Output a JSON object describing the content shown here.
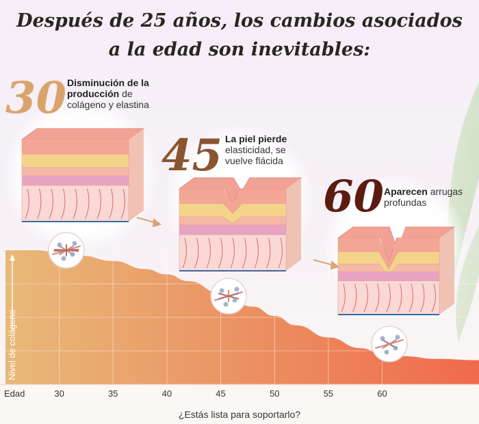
{
  "title_line1": "Después de 25 años, los cambios asociados",
  "title_line2": "a la edad son inevitables:",
  "stages": [
    {
      "age": "30",
      "bold": "Disminución de la producción",
      "rest": " de colágeno y elastina",
      "color": "#d9a46c"
    },
    {
      "age": "45",
      "bold": "La piel pierde",
      "rest": " elasticidad, se vuelve flácida",
      "color": "#8a5530"
    },
    {
      "age": "60",
      "bold": "Aparecen",
      "rest": " arrugas profundas",
      "color": "#5a1c12"
    }
  ],
  "footer": "¿Estás lista para soportarlo?",
  "colors": {
    "curve_start": "#e8b978",
    "curve_end": "#ef6a4c",
    "skin_top": "#f2a294",
    "fat_layer": "#f4d48a"
  },
  "chart_data": {
    "type": "area",
    "xlabel": "Edad",
    "ylabel": "Nivel de colágeno",
    "x_ticks": [
      30,
      35,
      40,
      45,
      50,
      55,
      60
    ],
    "xlim": [
      25,
      69
    ],
    "ylim": [
      0,
      100
    ],
    "x": [
      25,
      28,
      30,
      32,
      35,
      38,
      40,
      42,
      45,
      48,
      50,
      52,
      55,
      58,
      60,
      62,
      65,
      69
    ],
    "values": [
      100,
      100,
      98,
      96,
      92,
      86,
      82,
      77,
      68,
      58,
      51,
      44,
      35,
      27,
      23,
      21,
      19,
      18
    ],
    "grid": true
  }
}
